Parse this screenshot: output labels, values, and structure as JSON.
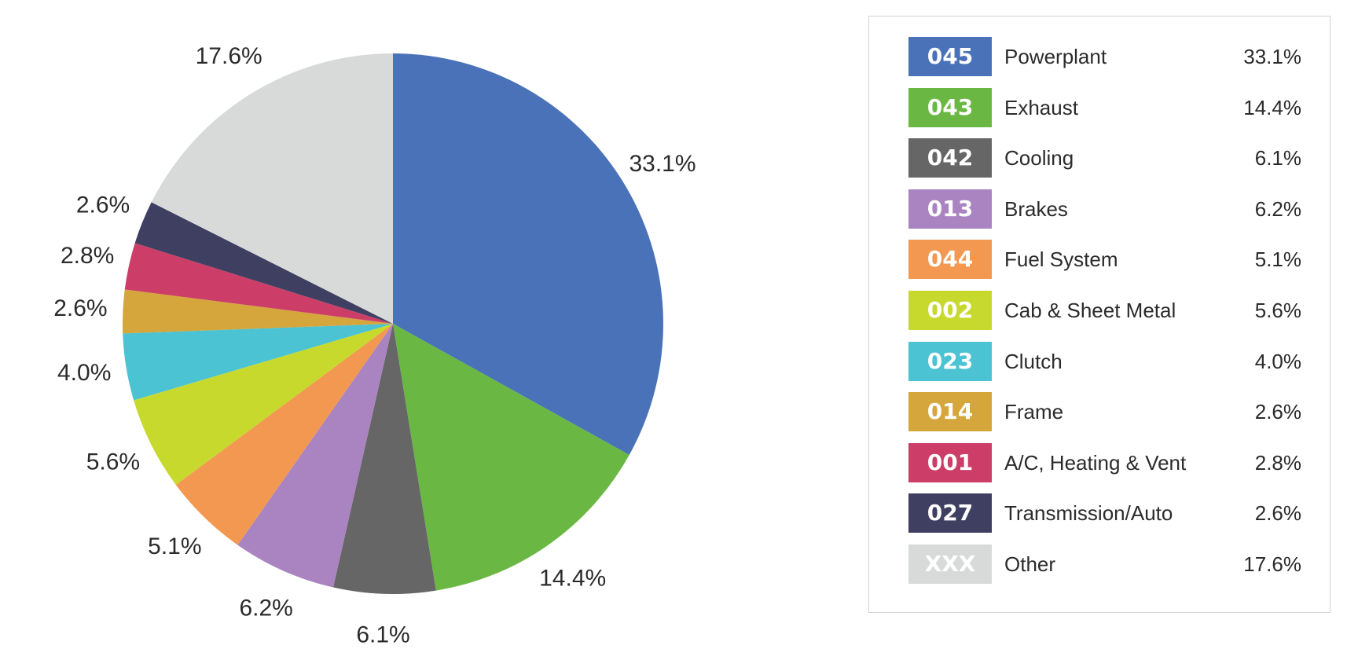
{
  "chart_data": {
    "type": "pie",
    "title": "",
    "start_angle_deg": 0,
    "direction": "clockwise",
    "slices": [
      {
        "code": "045",
        "name": "Powerplant",
        "value": 33.1,
        "label": "33.1%",
        "color": "#4a72b8"
      },
      {
        "code": "043",
        "name": "Exhaust",
        "value": 14.4,
        "label": "14.4%",
        "color": "#6ab843"
      },
      {
        "code": "042",
        "name": "Cooling",
        "value": 6.1,
        "label": "6.1%",
        "color": "#666666"
      },
      {
        "code": "013",
        "name": "Brakes",
        "value": 6.2,
        "label": "6.2%",
        "color": "#aa84c0"
      },
      {
        "code": "044",
        "name": "Fuel System",
        "value": 5.1,
        "label": "5.1%",
        "color": "#f39850"
      },
      {
        "code": "002",
        "name": "Cab & Sheet Metal",
        "value": 5.6,
        "label": "5.6%",
        "color": "#c7d92d"
      },
      {
        "code": "023",
        "name": "Clutch",
        "value": 4.0,
        "label": "4.0%",
        "color": "#4bc3d3"
      },
      {
        "code": "014",
        "name": "Frame",
        "value": 2.6,
        "label": "2.6%",
        "color": "#d4a63b"
      },
      {
        "code": "001",
        "name": "A/C, Heating & Vent",
        "value": 2.8,
        "label": "2.8%",
        "color": "#cc3e68"
      },
      {
        "code": "027",
        "name": "Transmission/Auto",
        "value": 2.6,
        "label": "2.6%",
        "color": "#3f3f62"
      },
      {
        "code": "XXX",
        "name": "Other",
        "value": 17.6,
        "label": "17.6%",
        "color": "#d8d9d9"
      }
    ],
    "legend": "right"
  }
}
